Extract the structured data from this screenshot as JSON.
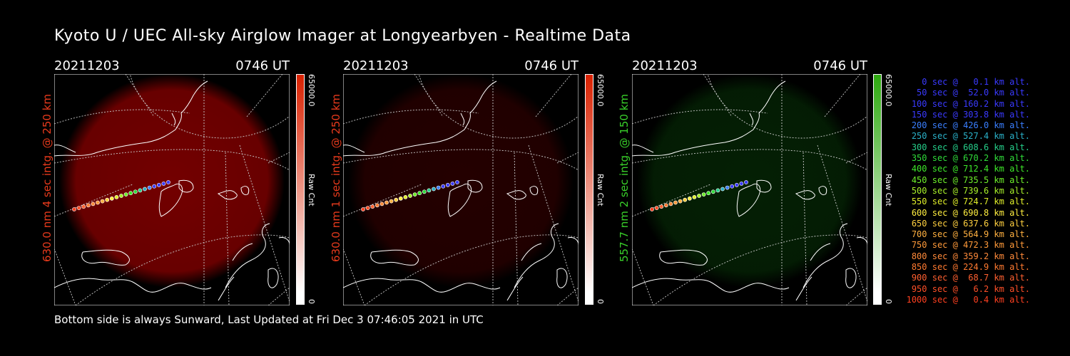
{
  "title": "Kyoto U / UEC All-sky Airglow Imager at Longyearbyen - Realtime Data",
  "footer": "Bottom side is always Sunward, Last Updated at Fri Dec  3 07:46:05 2021 in UTC",
  "panels": [
    {
      "date": "20211203",
      "time": "0746 UT",
      "ylabel": "630.0 nm 4 sec intg. @ 250 km",
      "ylabel_color": "#e83a1c",
      "glow": "#c00000",
      "glow_opacity": 0.6,
      "cb_max": "65000.0",
      "cb_label": "Raw Cnt",
      "cb_min": "0",
      "cb_color": "#d92000"
    },
    {
      "date": "20211203",
      "time": "0746 UT",
      "ylabel": "630.0 nm 1 sec intg. @ 250 km",
      "ylabel_color": "#e83a1c",
      "glow": "#900000",
      "glow_opacity": 0.25,
      "cb_max": "65000.0",
      "cb_label": "Raw Cnt",
      "cb_min": "0",
      "cb_color": "#d92000"
    },
    {
      "date": "20211203",
      "time": "0746 UT",
      "ylabel": "557.7 nm 2 sec intg. @ 150 km",
      "ylabel_color": "#39d02a",
      "glow": "#0b5a0b",
      "glow_opacity": 0.35,
      "cb_max": "65000.0",
      "cb_label": "Raw Cnt",
      "cb_min": "0",
      "cb_color": "#2da80f"
    }
  ],
  "legend": [
    {
      "text": "   0 sec @   0.1 km alt.",
      "color": "#3a3aff"
    },
    {
      "text": "  50 sec @  52.0 km alt.",
      "color": "#3a3aff"
    },
    {
      "text": " 100 sec @ 160.2 km alt.",
      "color": "#3a3aff"
    },
    {
      "text": " 150 sec @ 303.8 km alt.",
      "color": "#3a3aff"
    },
    {
      "text": " 200 sec @ 426.0 km alt.",
      "color": "#3a7fff"
    },
    {
      "text": " 250 sec @ 527.4 km alt.",
      "color": "#2ab0c8"
    },
    {
      "text": " 300 sec @ 608.6 km alt.",
      "color": "#25cf8a"
    },
    {
      "text": " 350 sec @ 670.2 km alt.",
      "color": "#2fdc3a"
    },
    {
      "text": " 400 sec @ 712.4 km alt.",
      "color": "#3ee82a"
    },
    {
      "text": " 450 sec @ 735.5 km alt.",
      "color": "#6ef02a"
    },
    {
      "text": " 500 sec @ 739.6 km alt.",
      "color": "#a8f02a"
    },
    {
      "text": " 550 sec @ 724.7 km alt.",
      "color": "#e0ee2a"
    },
    {
      "text": " 600 sec @ 690.8 km alt.",
      "color": "#ffee40"
    },
    {
      "text": " 650 sec @ 637.6 km alt.",
      "color": "#ffd040"
    },
    {
      "text": " 700 sec @ 564.9 km alt.",
      "color": "#ffb040"
    },
    {
      "text": " 750 sec @ 472.3 km alt.",
      "color": "#ff9a3a"
    },
    {
      "text": " 800 sec @ 359.2 km alt.",
      "color": "#ff8a3a"
    },
    {
      "text": " 850 sec @ 224.9 km alt.",
      "color": "#ff7a30"
    },
    {
      "text": " 900 sec @  68.7 km alt.",
      "color": "#ff6030"
    },
    {
      "text": " 950 sec @   6.2 km alt.",
      "color": "#ff5028"
    },
    {
      "text": "1000 sec @   0.4 km alt.",
      "color": "#ff4020"
    }
  ]
}
